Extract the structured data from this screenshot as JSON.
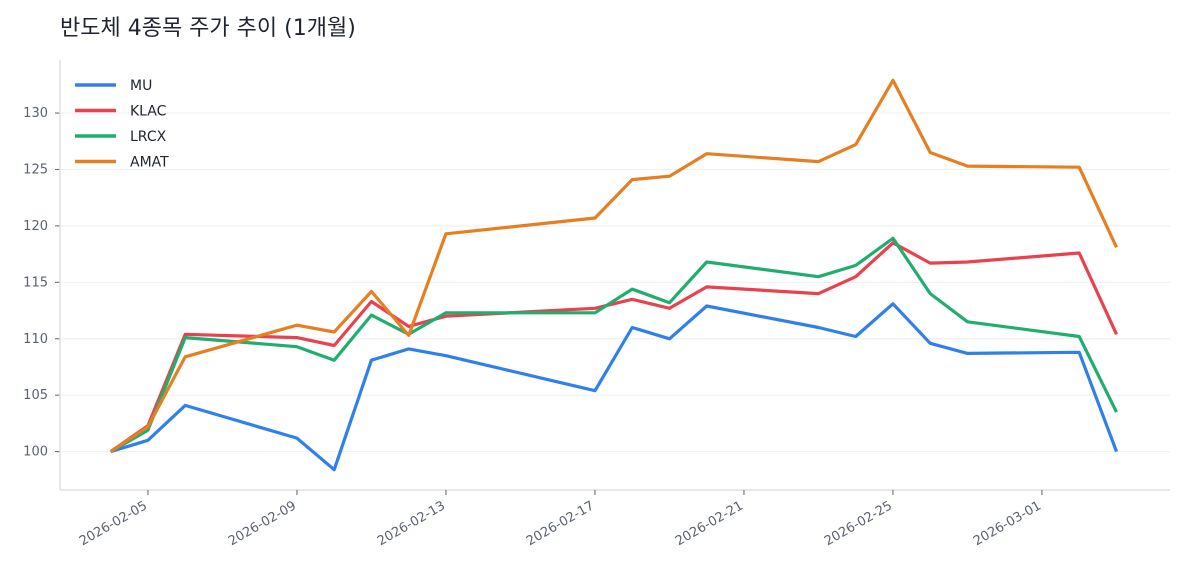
{
  "chart_data": {
    "type": "line",
    "title": "반도체 4종목 주가 추이 (1개월)",
    "xlabel": "",
    "ylabel": "",
    "x": [
      "2026-02-04",
      "2026-02-05",
      "2026-02-06",
      "2026-02-09",
      "2026-02-10",
      "2026-02-11",
      "2026-02-12",
      "2026-02-13",
      "2026-02-17",
      "2026-02-18",
      "2026-02-19",
      "2026-02-20",
      "2026-02-23",
      "2026-02-24",
      "2026-02-25",
      "2026-02-26",
      "2026-02-27",
      "2026-03-02",
      "2026-03-03"
    ],
    "xticks": [
      "2026-02-05",
      "2026-02-09",
      "2026-02-13",
      "2026-02-17",
      "2026-02-21",
      "2026-02-25",
      "2026-03-01"
    ],
    "yticks": [
      100,
      105,
      110,
      115,
      120,
      125,
      130
    ],
    "ylim": [
      96.6,
      134.7
    ],
    "grid": "horizontal",
    "legend": "top-left",
    "series": [
      {
        "name": "MU",
        "color": "#2f80ed",
        "values": [
          100,
          101.0,
          104.1,
          101.2,
          98.4,
          108.1,
          109.1,
          108.5,
          105.4,
          111.0,
          110.0,
          112.9,
          111.0,
          110.2,
          113.1,
          109.6,
          108.7,
          108.8,
          100.0
        ]
      },
      {
        "name": "KLAC",
        "color": "#e8414f",
        "values": [
          100,
          102.3,
          110.4,
          110.1,
          109.4,
          113.3,
          111.1,
          112.0,
          112.7,
          113.5,
          112.7,
          114.6,
          114.0,
          115.5,
          118.5,
          116.7,
          116.8,
          117.6,
          110.4
        ]
      },
      {
        "name": "LRCX",
        "color": "#1fae6e",
        "values": [
          100,
          101.9,
          110.1,
          109.3,
          108.1,
          112.1,
          110.4,
          112.3,
          112.3,
          114.4,
          113.2,
          116.8,
          115.5,
          116.5,
          118.9,
          114.0,
          111.5,
          110.2,
          103.5
        ]
      },
      {
        "name": "AMAT",
        "color": "#e67e22",
        "values": [
          100,
          102.2,
          108.4,
          111.2,
          110.6,
          114.2,
          110.3,
          119.3,
          120.7,
          124.1,
          124.4,
          126.4,
          125.7,
          127.2,
          132.9,
          126.5,
          125.3,
          125.2,
          118.1
        ]
      }
    ]
  }
}
